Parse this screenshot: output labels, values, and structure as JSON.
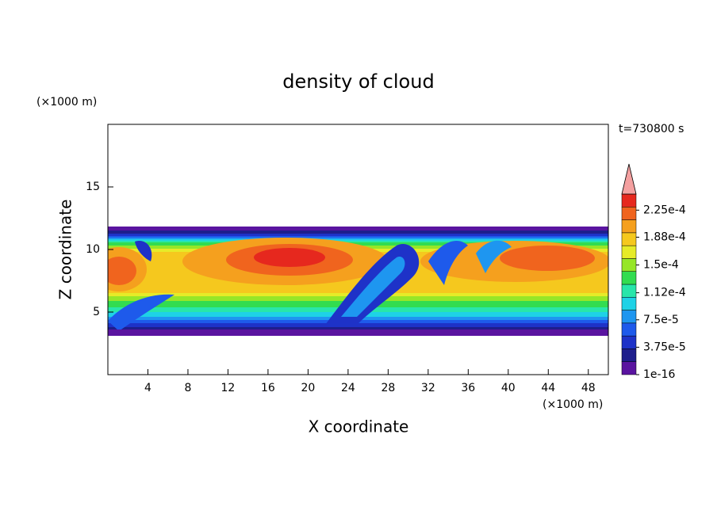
{
  "chart_data": {
    "type": "contour",
    "title": "density of cloud",
    "x_label": "X coordinate",
    "y_label": "Z coordinate",
    "x_unit": "(×1000 m)",
    "y_unit": "(×1000 m)",
    "annotation": "t=730800 s",
    "xlim": [
      0,
      50
    ],
    "xticks": [
      4,
      8,
      12,
      16,
      20,
      24,
      28,
      32,
      36,
      40,
      44,
      48
    ],
    "ylim": [
      0,
      20
    ],
    "yticks": [
      5,
      10,
      15
    ],
    "colorbar": {
      "lim": [
        1e-16,
        0.000247
      ],
      "ticks": [
        {
          "value": 1e-16,
          "label": "1e-16"
        },
        {
          "value": 3.75e-05,
          "label": "3.75e-5"
        },
        {
          "value": 7.5e-05,
          "label": "7.5e-5"
        },
        {
          "value": 0.000112,
          "label": "1.12e-4"
        },
        {
          "value": 0.00015,
          "label": "1.5e-4"
        },
        {
          "value": 0.000188,
          "label": "1.88e-4"
        },
        {
          "value": 0.000225,
          "label": "2.25e-4"
        }
      ],
      "colors": [
        "#5a14a0",
        "#1e1e8c",
        "#1e32c8",
        "#1e5aeb",
        "#1e96f0",
        "#1ed2e6",
        "#28e6aa",
        "#32dc50",
        "#96e628",
        "#e6eb28",
        "#f5c81e",
        "#f5a01e",
        "#f0641e",
        "#e6281e"
      ],
      "extend_color": "#f4a0a0"
    }
  }
}
